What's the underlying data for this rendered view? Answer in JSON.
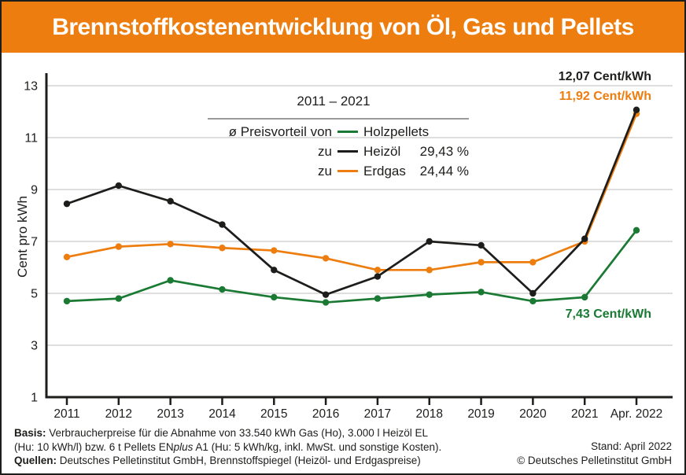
{
  "header": {
    "title": "Brennstoffkostenentwicklung von Öl, Gas und Pellets"
  },
  "colors": {
    "accent": "#ED7D0E",
    "heizoel": "#1D1D1B",
    "erdgas": "#ED7D0E",
    "holzpellets": "#1A7A33",
    "grid": "#C9C9C9"
  },
  "chart_data": {
    "type": "line",
    "title": "Brennstoffkostenentwicklung von Öl, Gas und Pellets",
    "ylabel": "Cent pro kWh",
    "xlabel": "",
    "ylim": [
      1,
      13
    ],
    "yticks": [
      1,
      3,
      5,
      7,
      9,
      11,
      13
    ],
    "grid": true,
    "x": [
      "2011",
      "2012",
      "2013",
      "2014",
      "2015",
      "2016",
      "2017",
      "2018",
      "2019",
      "2020",
      "2021",
      "Apr. 2022"
    ],
    "series": [
      {
        "name": "Heizöl",
        "color": "#1D1D1B",
        "values": [
          8.45,
          9.15,
          8.55,
          7.65,
          5.9,
          4.95,
          5.65,
          7.0,
          6.85,
          5.0,
          7.1,
          12.07
        ]
      },
      {
        "name": "Erdgas",
        "color": "#ED7D0E",
        "values": [
          6.4,
          6.8,
          6.9,
          6.75,
          6.65,
          6.35,
          5.9,
          5.9,
          6.2,
          6.2,
          7.0,
          11.92
        ]
      },
      {
        "name": "Holzpellets",
        "color": "#1A7A33",
        "values": [
          4.7,
          4.8,
          5.5,
          5.15,
          4.85,
          4.65,
          4.8,
          4.95,
          5.05,
          4.7,
          4.85,
          7.43
        ]
      }
    ],
    "annotations": [
      {
        "text": "12,07 Cent/kWh",
        "series": "Heizöl"
      },
      {
        "text": "11,92 Cent/kWh",
        "series": "Erdgas"
      },
      {
        "text": "7,43 Cent/kWh",
        "series": "Holzpellets"
      }
    ],
    "legend_position": "top-center"
  },
  "legend": {
    "period": "2011 – 2021",
    "row1_label": "ø Preisvorteil von",
    "row1_name": "Holzpellets",
    "row2_label": "zu",
    "row2_name": "Heizöl",
    "row2_value": "29,43 %",
    "row3_label": "zu",
    "row3_name": "Erdgas",
    "row3_value": "24,44 %"
  },
  "footer": {
    "basis_label": "Basis:",
    "basis_line1": " Verbraucherpreise für die Abnahme von 33.540 kWh Gas (Ho), 3.000 l Heizöl EL",
    "line2_pre": "(Hu: 10 kWh/l) bzw. 6 t Pellets EN",
    "line2_italic": "plus",
    "line2_post": " A1 (Hu: 5 kWh/kg, inkl. MwSt. und sonstige Kosten).",
    "quellen_label": "Quellen:",
    "quellen_rest": " Deutsches Pelletinstitut GmbH, Brennstoffspiegel (Heizöl- und Erdgaspreise)",
    "stand": "Stand: April 2022",
    "copyright": "© Deutsches Pelletinstitut GmbH"
  }
}
